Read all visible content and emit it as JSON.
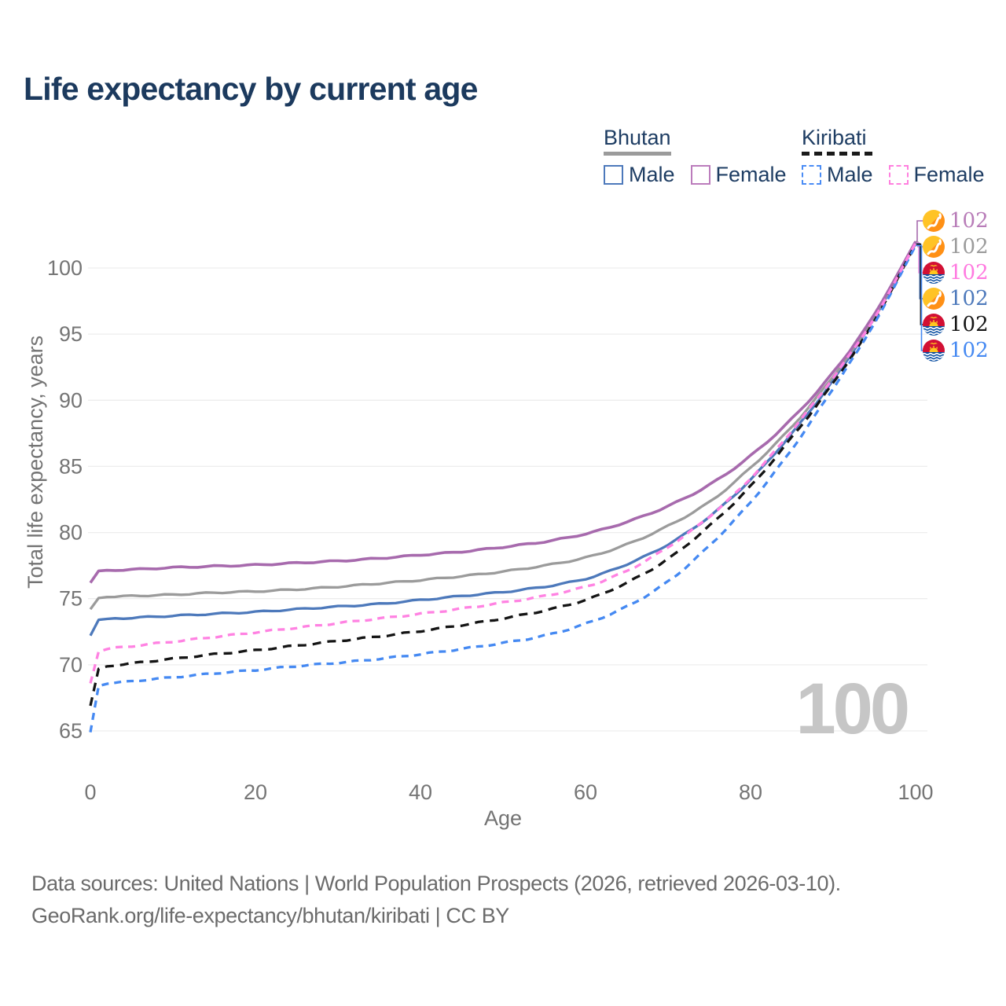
{
  "title": "Life expectancy by current age",
  "legend": {
    "groups": [
      {
        "name": "Bhutan",
        "line_style": "solid",
        "underline_color": "#9b9b9b",
        "items": [
          {
            "label": "Male",
            "color": "#4d79bb",
            "style": "solid"
          },
          {
            "label": "Female",
            "color": "#bb7cbc",
            "style": "solid"
          }
        ]
      },
      {
        "name": "Kiribati",
        "line_style": "dashed",
        "underline_color": "#1a1a1a",
        "items": [
          {
            "label": "Male",
            "color": "#4a8cf5",
            "style": "dashed"
          },
          {
            "label": "Female",
            "color": "#ff80df",
            "style": "dashed"
          }
        ]
      }
    ]
  },
  "axes": {
    "x_label": "Age",
    "y_label": "Total life expectancy, years"
  },
  "watermark": {
    "text": "100"
  },
  "end_labels": [
    {
      "flag": "bhutan-flag-icon",
      "value": "102",
      "color": "#b87cb8"
    },
    {
      "flag": "bhutan-flag-icon",
      "value": "102",
      "color": "#9b9b9b"
    },
    {
      "flag": "kiribati-flag-icon",
      "value": "102",
      "color": "#ff7ae0"
    },
    {
      "flag": "bhutan-flag-icon",
      "value": "102",
      "color": "#4d79bb"
    },
    {
      "flag": "kiribati-flag-icon",
      "value": "102",
      "color": "#141414"
    },
    {
      "flag": "kiribati-flag-icon",
      "value": "102",
      "color": "#4589f2"
    }
  ],
  "footer": {
    "line1": "Data sources: United Nations | World Population Prospects (2026, retrieved 2026-03-10).",
    "line2": "GeoRank.org/life-expectancy/bhutan/kiribati | CC BY"
  },
  "chart_data": {
    "type": "line",
    "title": "Life expectancy by current age",
    "xlabel": "Age",
    "ylabel": "Total life expectancy, years",
    "x_ticks": [
      0,
      20,
      40,
      60,
      80,
      100
    ],
    "y_ticks": [
      65,
      70,
      75,
      80,
      85,
      90,
      95,
      100
    ],
    "xlim": [
      0,
      100
    ],
    "ylim": [
      63.5,
      103.5
    ],
    "grid": "horizontal",
    "legend_position": "top-right",
    "ages": [
      0,
      1,
      5,
      10,
      15,
      20,
      25,
      30,
      35,
      40,
      45,
      50,
      55,
      60,
      65,
      70,
      75,
      80,
      85,
      90,
      95,
      100
    ],
    "series": [
      {
        "name": "Bhutan Female",
        "country": "Bhutan",
        "sex": "Female",
        "color": "#a76aad",
        "dash": "solid",
        "end_label": "102",
        "values": [
          76.2,
          77.1,
          77.2,
          77.35,
          77.45,
          77.55,
          77.7,
          77.85,
          78.05,
          78.3,
          78.55,
          78.9,
          79.3,
          79.9,
          80.8,
          82.0,
          83.6,
          85.8,
          88.6,
          92.1,
          96.5,
          102.0
        ]
      },
      {
        "name": "Bhutan Both sexes",
        "country": "Bhutan",
        "sex": "Both",
        "color": "#9b9b9b",
        "dash": "solid",
        "end_label": "102",
        "values": [
          74.2,
          75.05,
          75.2,
          75.3,
          75.45,
          75.55,
          75.7,
          75.9,
          76.15,
          76.4,
          76.7,
          77.05,
          77.5,
          78.1,
          79.1,
          80.5,
          82.3,
          84.9,
          88.0,
          91.8,
          96.3,
          101.95
        ]
      },
      {
        "name": "Kiribati Female",
        "country": "Kiribati",
        "sex": "Female",
        "color": "#ff82e2",
        "dash": "dashed",
        "end_label": "102",
        "values": [
          68.6,
          71.0,
          71.4,
          71.75,
          72.1,
          72.45,
          72.8,
          73.15,
          73.5,
          73.85,
          74.25,
          74.7,
          75.2,
          75.9,
          77.1,
          78.9,
          81.2,
          84.1,
          87.7,
          91.7,
          96.2,
          101.9
        ]
      },
      {
        "name": "Bhutan Male",
        "country": "Bhutan",
        "sex": "Male",
        "color": "#4d79bb",
        "dash": "solid",
        "end_label": "102",
        "values": [
          72.2,
          73.4,
          73.55,
          73.7,
          73.85,
          74.0,
          74.2,
          74.4,
          74.6,
          74.9,
          75.2,
          75.5,
          75.9,
          76.5,
          77.6,
          79.1,
          81.2,
          84.0,
          87.5,
          91.5,
          96.2,
          101.85
        ]
      },
      {
        "name": "Kiribati Both sexes",
        "country": "Kiribati",
        "sex": "Both",
        "color": "#141414",
        "dash": "dashed",
        "end_label": "102",
        "values": [
          66.9,
          69.7,
          70.1,
          70.45,
          70.8,
          71.1,
          71.45,
          71.8,
          72.15,
          72.55,
          73.0,
          73.5,
          74.1,
          74.9,
          76.2,
          78.0,
          80.5,
          83.5,
          87.2,
          91.3,
          96.0,
          101.8
        ]
      },
      {
        "name": "Kiribati Male",
        "country": "Kiribati",
        "sex": "Male",
        "color": "#4589f2",
        "dash": "dashed",
        "end_label": "102",
        "values": [
          64.9,
          68.4,
          68.75,
          69.05,
          69.35,
          69.6,
          69.9,
          70.15,
          70.45,
          70.8,
          71.2,
          71.65,
          72.2,
          73.1,
          74.4,
          76.3,
          79.0,
          82.3,
          86.3,
          90.9,
          95.8,
          101.7
        ]
      }
    ]
  }
}
